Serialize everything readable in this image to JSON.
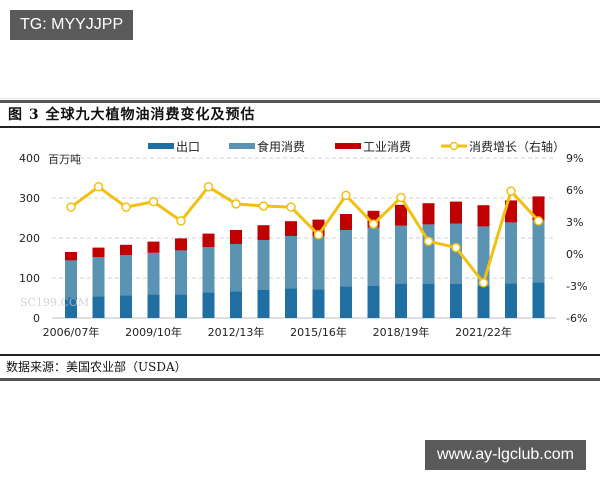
{
  "overlay": {
    "top_tag": "TG: MYYJJPP",
    "bottom_tag": "www.ay-lgclub.com",
    "watermark": "SC199.COM"
  },
  "figure": {
    "title": "图 3   全球九大植物油消费变化及预估",
    "source": "数据来源：美国农业部（USDA）"
  },
  "chart_data": {
    "type": "bar",
    "stacked": true,
    "title": "全球九大植物油消费变化及预估",
    "ylabel": "百万吨",
    "ylim": [
      0,
      400
    ],
    "yticks": [
      0,
      100,
      200,
      300,
      400
    ],
    "y2label": "消费增长（右轴）",
    "y2lim": [
      -6,
      9
    ],
    "y2ticks": [
      "-6%",
      "-3%",
      "0%",
      "3%",
      "6%",
      "9%"
    ],
    "grid": true,
    "legend_position": "top",
    "xtick_labels": [
      "2006/07年",
      "2009/10年",
      "2012/13年",
      "2015/16年",
      "2018/19年",
      "2021/22年"
    ],
    "categories": [
      "2006/07",
      "2007/08",
      "2008/09",
      "2009/10",
      "2010/11",
      "2011/12",
      "2012/13",
      "2013/14",
      "2014/15",
      "2015/16",
      "2016/17",
      "2017/18",
      "2018/19",
      "2019/20",
      "2020/21",
      "2021/22",
      "2022/23",
      "2023/24"
    ],
    "series": [
      {
        "name": "出口",
        "type": "bar",
        "color": "#1f6fa3",
        "values": [
          52,
          54,
          57,
          59,
          59,
          64,
          67,
          70,
          74,
          72,
          79,
          80,
          86,
          86,
          85,
          80,
          87,
          89
        ]
      },
      {
        "name": "食用消费",
        "type": "bar",
        "color": "#5b93b2",
        "values": [
          92,
          98,
          100,
          104,
          110,
          113,
          118,
          125,
          131,
          132,
          141,
          146,
          145,
          148,
          151,
          149,
          152,
          156
        ]
      },
      {
        "name": "工业消费",
        "type": "bar",
        "color": "#c00000",
        "values": [
          21,
          24,
          26,
          28,
          30,
          34,
          35,
          37,
          37,
          42,
          40,
          42,
          52,
          53,
          55,
          53,
          55,
          59
        ]
      },
      {
        "name": "消费增长（右轴）",
        "type": "line",
        "axis": "right",
        "color": "#f2c012",
        "values": [
          4.4,
          6.3,
          4.4,
          4.9,
          3.1,
          6.3,
          4.7,
          4.5,
          4.4,
          1.8,
          5.5,
          2.8,
          5.3,
          1.2,
          0.6,
          -2.7,
          5.9,
          3.1
        ]
      }
    ]
  }
}
